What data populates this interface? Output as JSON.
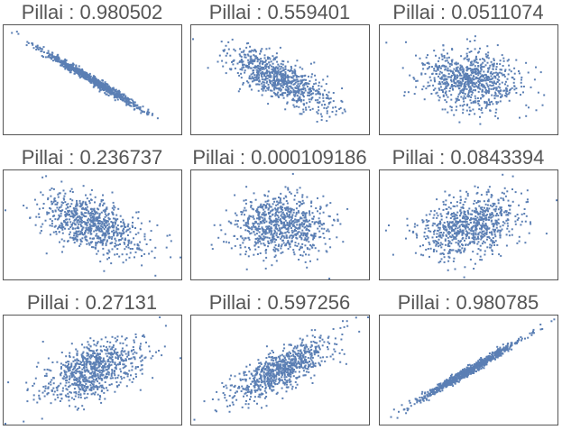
{
  "chart_data": [
    {
      "type": "scatter",
      "title": "Pillai : 0.980502",
      "correlation": -0.99,
      "points": 800
    },
    {
      "type": "scatter",
      "title": "Pillai : 0.559401",
      "correlation": -0.748,
      "points": 800
    },
    {
      "type": "scatter",
      "title": "Pillai : 0.0511074",
      "correlation": -0.226,
      "points": 800
    },
    {
      "type": "scatter",
      "title": "Pillai : 0.236737",
      "correlation": -0.487,
      "points": 800
    },
    {
      "type": "scatter",
      "title": "Pillai : 0.000109186",
      "correlation": 0.01,
      "points": 800
    },
    {
      "type": "scatter",
      "title": "Pillai : 0.0843394",
      "correlation": 0.29,
      "points": 800
    },
    {
      "type": "scatter",
      "title": "Pillai : 0.27131",
      "correlation": 0.521,
      "points": 800
    },
    {
      "type": "scatter",
      "title": "Pillai : 0.597256",
      "correlation": 0.773,
      "points": 800
    },
    {
      "type": "scatter",
      "title": "Pillai : 0.980785",
      "correlation": 0.99,
      "points": 800
    }
  ],
  "colors": {
    "points": "#5b7fb4",
    "frame": "#555555",
    "title": "#555555"
  }
}
